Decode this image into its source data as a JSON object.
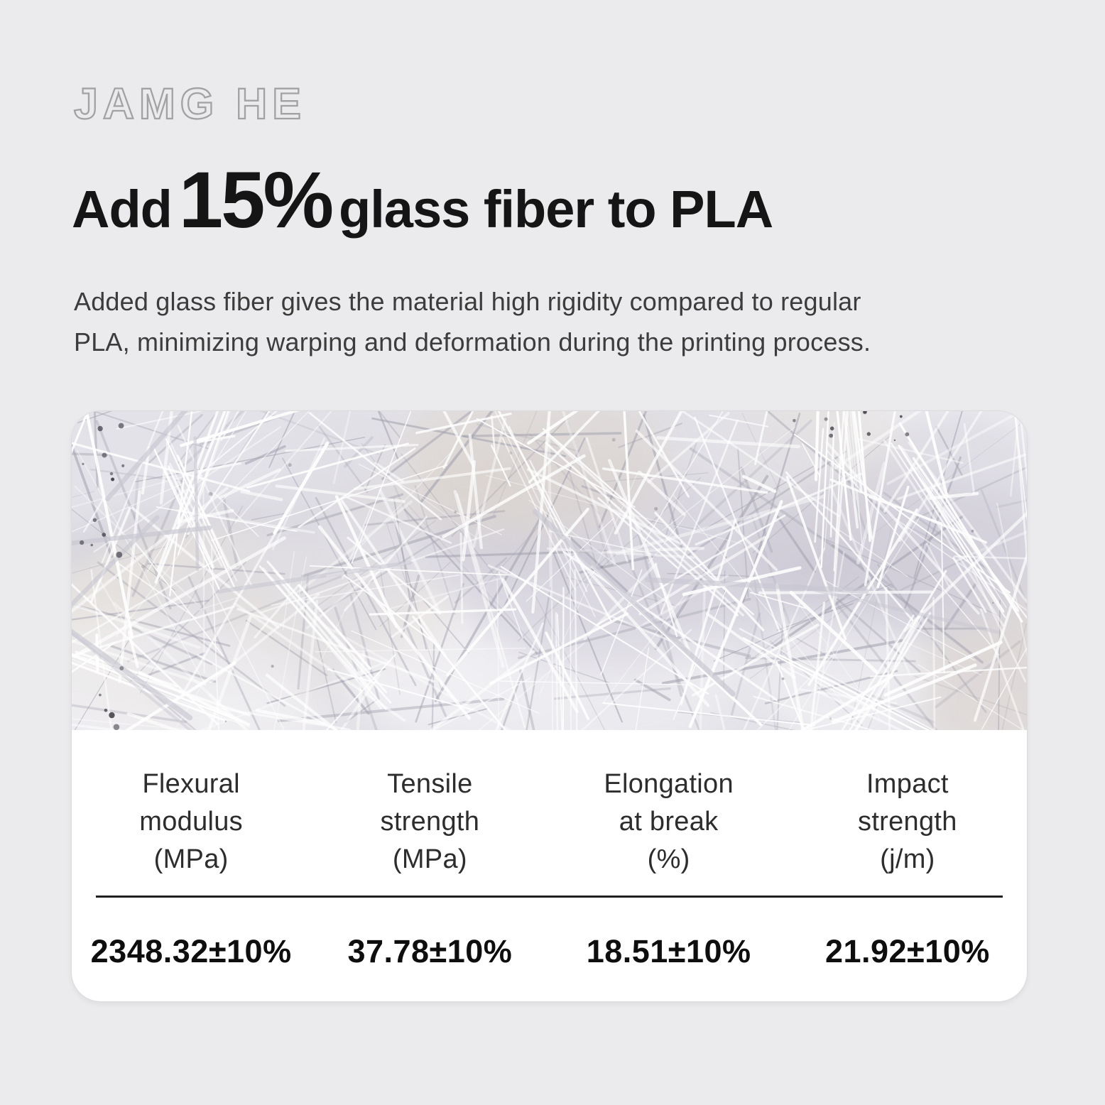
{
  "colors": {
    "page_background": "#ebebed",
    "card_background": "#ffffff",
    "headline_text": "#151515",
    "body_text": "#3c3c3c",
    "divider": "#1e1e1e",
    "logo_outline": "#a2a2a2"
  },
  "brand": {
    "logo_text": "JAMG HE"
  },
  "headline": {
    "prefix": "Add",
    "highlight": "15%",
    "suffix": "glass fiber to PLA"
  },
  "description": {
    "line1": "Added glass fiber gives the material high rigidity compared to regular",
    "line2": "PLA, minimizing warping and deformation during the printing process."
  },
  "spec_card": {
    "photo": "glass-fiber-strands",
    "columns": [
      {
        "label_lines": [
          "Flexural",
          "modulus",
          "(MPa)"
        ],
        "value": "2348.32±10%"
      },
      {
        "label_lines": [
          "Tensile",
          "strength",
          "(MPa)"
        ],
        "value": "37.78±10%"
      },
      {
        "label_lines": [
          "Elongation",
          "at break",
          "(%)"
        ],
        "value": "18.51±10%"
      },
      {
        "label_lines": [
          "Impact",
          "strength",
          "(j/m)"
        ],
        "value": "21.92±10%"
      }
    ]
  }
}
